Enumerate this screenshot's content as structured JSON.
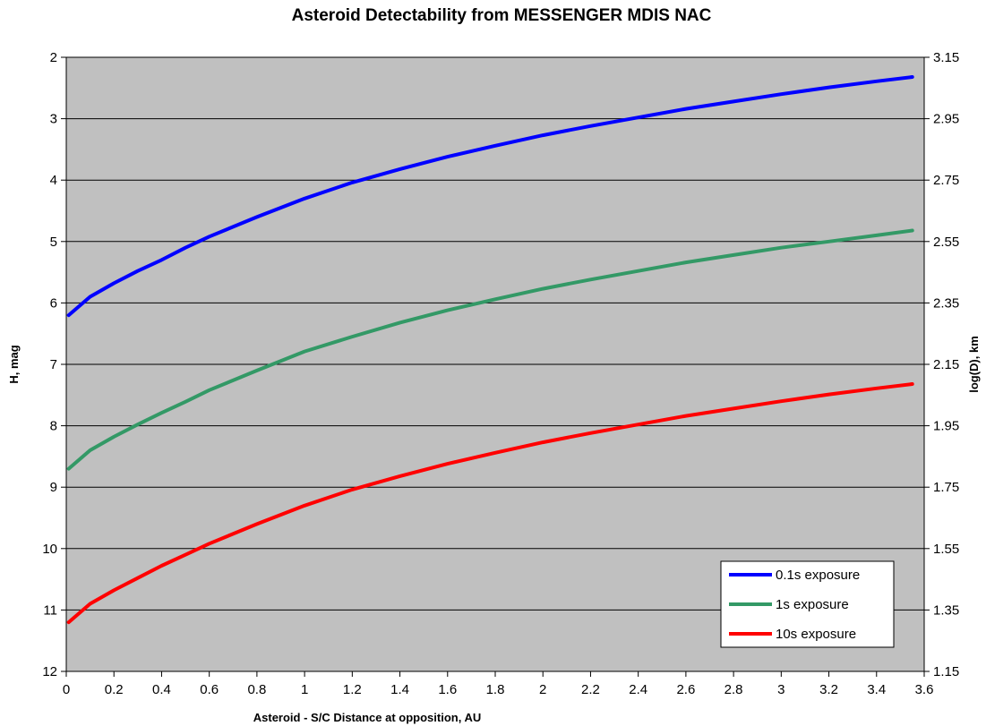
{
  "chart_data": {
    "type": "line",
    "title": "Asteroid Detectability from MESSENGER MDIS NAC",
    "xlabel": "Asteroid - S/C Distance at opposition, AU",
    "ylabel": "H, mag",
    "y2label": "log(D), km",
    "xlim": [
      0,
      3.6
    ],
    "ylim": [
      12,
      2
    ],
    "y_inverted": true,
    "y2lim": [
      1.15,
      3.15
    ],
    "x_ticks": [
      "0",
      "0.2",
      "0.4",
      "0.6",
      "0.8",
      "1",
      "1.2",
      "1.4",
      "1.6",
      "1.8",
      "2",
      "2.2",
      "2.4",
      "2.6",
      "2.8",
      "3",
      "3.2",
      "3.4",
      "3.6"
    ],
    "y_ticks": [
      "2",
      "3",
      "4",
      "5",
      "6",
      "7",
      "8",
      "9",
      "10",
      "11",
      "12"
    ],
    "y2_ticks": [
      "3.15",
      "2.95",
      "2.75",
      "2.55",
      "2.35",
      "2.15",
      "1.95",
      "1.75",
      "1.55",
      "1.35",
      "1.15"
    ],
    "grid": "horizontal",
    "plot_background": "#c0c0c0",
    "legend_position": "bottom-right",
    "x": [
      0.01,
      0.1,
      0.2,
      0.3,
      0.4,
      0.5,
      0.6,
      0.8,
      1.0,
      1.2,
      1.4,
      1.6,
      1.8,
      2.0,
      2.2,
      2.4,
      2.6,
      2.8,
      3.0,
      3.2,
      3.4,
      3.55
    ],
    "series": [
      {
        "name": "0.1s exposure",
        "color": "#0000ff",
        "values": [
          6.2,
          5.9,
          5.68,
          5.48,
          5.3,
          5.1,
          4.92,
          4.6,
          4.3,
          4.04,
          3.82,
          3.62,
          3.44,
          3.27,
          3.12,
          2.98,
          2.84,
          2.72,
          2.6,
          2.49,
          2.39,
          2.32
        ]
      },
      {
        "name": "1s exposure",
        "color": "#339966",
        "values": [
          8.7,
          8.4,
          8.18,
          7.98,
          7.79,
          7.61,
          7.42,
          7.1,
          6.79,
          6.55,
          6.32,
          6.12,
          5.94,
          5.77,
          5.62,
          5.48,
          5.34,
          5.22,
          5.1,
          5.0,
          4.9,
          4.82
        ]
      },
      {
        "name": "10s exposure",
        "color": "#ff0000",
        "values": [
          11.2,
          10.9,
          10.68,
          10.48,
          10.28,
          10.1,
          9.92,
          9.6,
          9.3,
          9.04,
          8.82,
          8.62,
          8.44,
          8.27,
          8.12,
          7.98,
          7.84,
          7.72,
          7.6,
          7.49,
          7.39,
          7.32
        ]
      }
    ]
  }
}
